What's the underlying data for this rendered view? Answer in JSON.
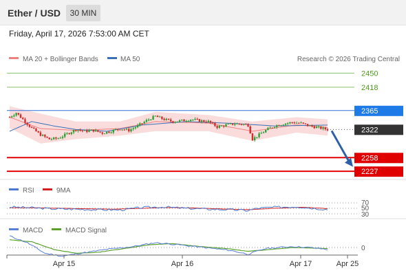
{
  "header": {
    "pair": "Ether / USD",
    "interval": "30 MIN"
  },
  "datetime": "Friday, April 17, 2026 7:53:00 AM CET",
  "legend": {
    "ma20_bb": "MA 20 + Bollinger Bands",
    "ma50": "MA 50",
    "copyright": "Research © 2026 Trading Central"
  },
  "colors": {
    "resistance": "#8dc06a",
    "resistance_text": "#4f9a1c",
    "pivot": "#2e6fd6",
    "pivot_label_bg": "#1e7ae6",
    "last_price_bg": "#333333",
    "support": "#e00000",
    "bullish_candle": "#2aa034",
    "bearish_candle": "#d42a2a",
    "bollinger_fill": "#f8d0d0",
    "ma20": "#f08080",
    "ma50": "#3a6fb5",
    "rsi": "#4a78d0",
    "rsi_ma": "#d02020",
    "macd": "#5a7fd6",
    "macd_signal": "#5aa02a",
    "forecast_arrow": "#2c5fa8"
  },
  "levels": {
    "resistance_2": "2450",
    "resistance_1": "2418",
    "pivot": "2365",
    "last": "2322",
    "support_1": "2258",
    "support_2": "2227"
  },
  "rsi_panel": {
    "label": "RSI",
    "ma_label": "9MA",
    "levels": [
      "70",
      "50",
      "30"
    ]
  },
  "macd_panel": {
    "label": "MACD",
    "signal_label": "MACD Signal",
    "zero": "0"
  },
  "xaxis": {
    "ticks": [
      "Apr 15",
      "Apr 16",
      "Apr 17",
      "Apr 25"
    ]
  },
  "chart_data": {
    "type": "candlestick",
    "instrument": "Ether / USD",
    "timeframe": "30 MIN",
    "ylim": [
      2210,
      2460
    ],
    "x_ticks": [
      "Apr 15",
      "Apr 16",
      "Apr 17",
      "Apr 25"
    ],
    "path_anchors": [
      [
        0,
        2350
      ],
      [
        3,
        2360
      ],
      [
        6,
        2345
      ],
      [
        10,
        2325
      ],
      [
        14,
        2310
      ],
      [
        18,
        2300
      ],
      [
        22,
        2302
      ],
      [
        26,
        2312
      ],
      [
        30,
        2322
      ],
      [
        34,
        2318
      ],
      [
        38,
        2320
      ],
      [
        42,
        2314
      ],
      [
        46,
        2318
      ],
      [
        50,
        2324
      ],
      [
        54,
        2320
      ],
      [
        58,
        2330
      ],
      [
        62,
        2342
      ],
      [
        66,
        2352
      ],
      [
        70,
        2345
      ],
      [
        74,
        2340
      ],
      [
        78,
        2342
      ],
      [
        82,
        2345
      ],
      [
        86,
        2342
      ],
      [
        90,
        2340
      ],
      [
        94,
        2328
      ],
      [
        98,
        2332
      ],
      [
        102,
        2335
      ],
      [
        106,
        2334
      ],
      [
        108,
        2332
      ],
      [
        110,
        2300
      ],
      [
        113,
        2310
      ],
      [
        116,
        2320
      ],
      [
        120,
        2330
      ],
      [
        124,
        2335
      ],
      [
        128,
        2338
      ],
      [
        132,
        2336
      ],
      [
        136,
        2330
      ],
      [
        140,
        2326
      ],
      [
        144,
        2322
      ]
    ],
    "bollinger_upper_anchors": [
      [
        0,
        2375
      ],
      [
        14,
        2358
      ],
      [
        30,
        2340
      ],
      [
        50,
        2340
      ],
      [
        66,
        2362
      ],
      [
        90,
        2355
      ],
      [
        110,
        2340
      ],
      [
        130,
        2350
      ],
      [
        144,
        2345
      ]
    ],
    "bollinger_lower_anchors": [
      [
        0,
        2325
      ],
      [
        14,
        2290
      ],
      [
        30,
        2300
      ],
      [
        50,
        2308
      ],
      [
        66,
        2318
      ],
      [
        90,
        2318
      ],
      [
        110,
        2296
      ],
      [
        130,
        2315
      ],
      [
        144,
        2308
      ]
    ],
    "ma50_anchors": [
      [
        0,
        2318
      ],
      [
        10,
        2340
      ],
      [
        20,
        2330
      ],
      [
        30,
        2322
      ],
      [
        44,
        2318
      ],
      [
        60,
        2332
      ],
      [
        80,
        2340
      ],
      [
        100,
        2336
      ],
      [
        120,
        2330
      ],
      [
        144,
        2332
      ]
    ],
    "forecast": {
      "from": 2322,
      "to": 2248
    },
    "rsi_anchors": [
      [
        0,
        55
      ],
      [
        10,
        52
      ],
      [
        20,
        48
      ],
      [
        30,
        47
      ],
      [
        40,
        45
      ],
      [
        50,
        44
      ],
      [
        60,
        53
      ],
      [
        70,
        55
      ],
      [
        80,
        50
      ],
      [
        90,
        47
      ],
      [
        100,
        45
      ],
      [
        108,
        42
      ],
      [
        112,
        50
      ],
      [
        120,
        54
      ],
      [
        130,
        56
      ],
      [
        138,
        50
      ],
      [
        144,
        46
      ]
    ],
    "rsi_ma_anchors": [
      [
        0,
        52
      ],
      [
        12,
        52
      ],
      [
        24,
        50
      ],
      [
        36,
        48
      ],
      [
        48,
        47
      ],
      [
        60,
        50
      ],
      [
        72,
        53
      ],
      [
        84,
        51
      ],
      [
        96,
        48
      ],
      [
        108,
        45
      ],
      [
        120,
        50
      ],
      [
        132,
        54
      ],
      [
        144,
        49
      ]
    ],
    "macd_anchors": [
      [
        0,
        12
      ],
      [
        8,
        5
      ],
      [
        16,
        -6
      ],
      [
        24,
        -9
      ],
      [
        32,
        -6
      ],
      [
        44,
        -2
      ],
      [
        56,
        1
      ],
      [
        66,
        5
      ],
      [
        76,
        3
      ],
      [
        88,
        0
      ],
      [
        100,
        -3
      ],
      [
        108,
        -7
      ],
      [
        116,
        -1
      ],
      [
        128,
        1
      ],
      [
        136,
        0
      ],
      [
        144,
        -2
      ]
    ],
    "macd_signal_anchors": [
      [
        0,
        8
      ],
      [
        10,
        6
      ],
      [
        20,
        -2
      ],
      [
        30,
        -6
      ],
      [
        40,
        -5
      ],
      [
        52,
        -1
      ],
      [
        64,
        3
      ],
      [
        74,
        4
      ],
      [
        86,
        1
      ],
      [
        98,
        -1
      ],
      [
        108,
        -4
      ],
      [
        118,
        -2
      ],
      [
        128,
        0
      ],
      [
        144,
        -1
      ]
    ]
  }
}
